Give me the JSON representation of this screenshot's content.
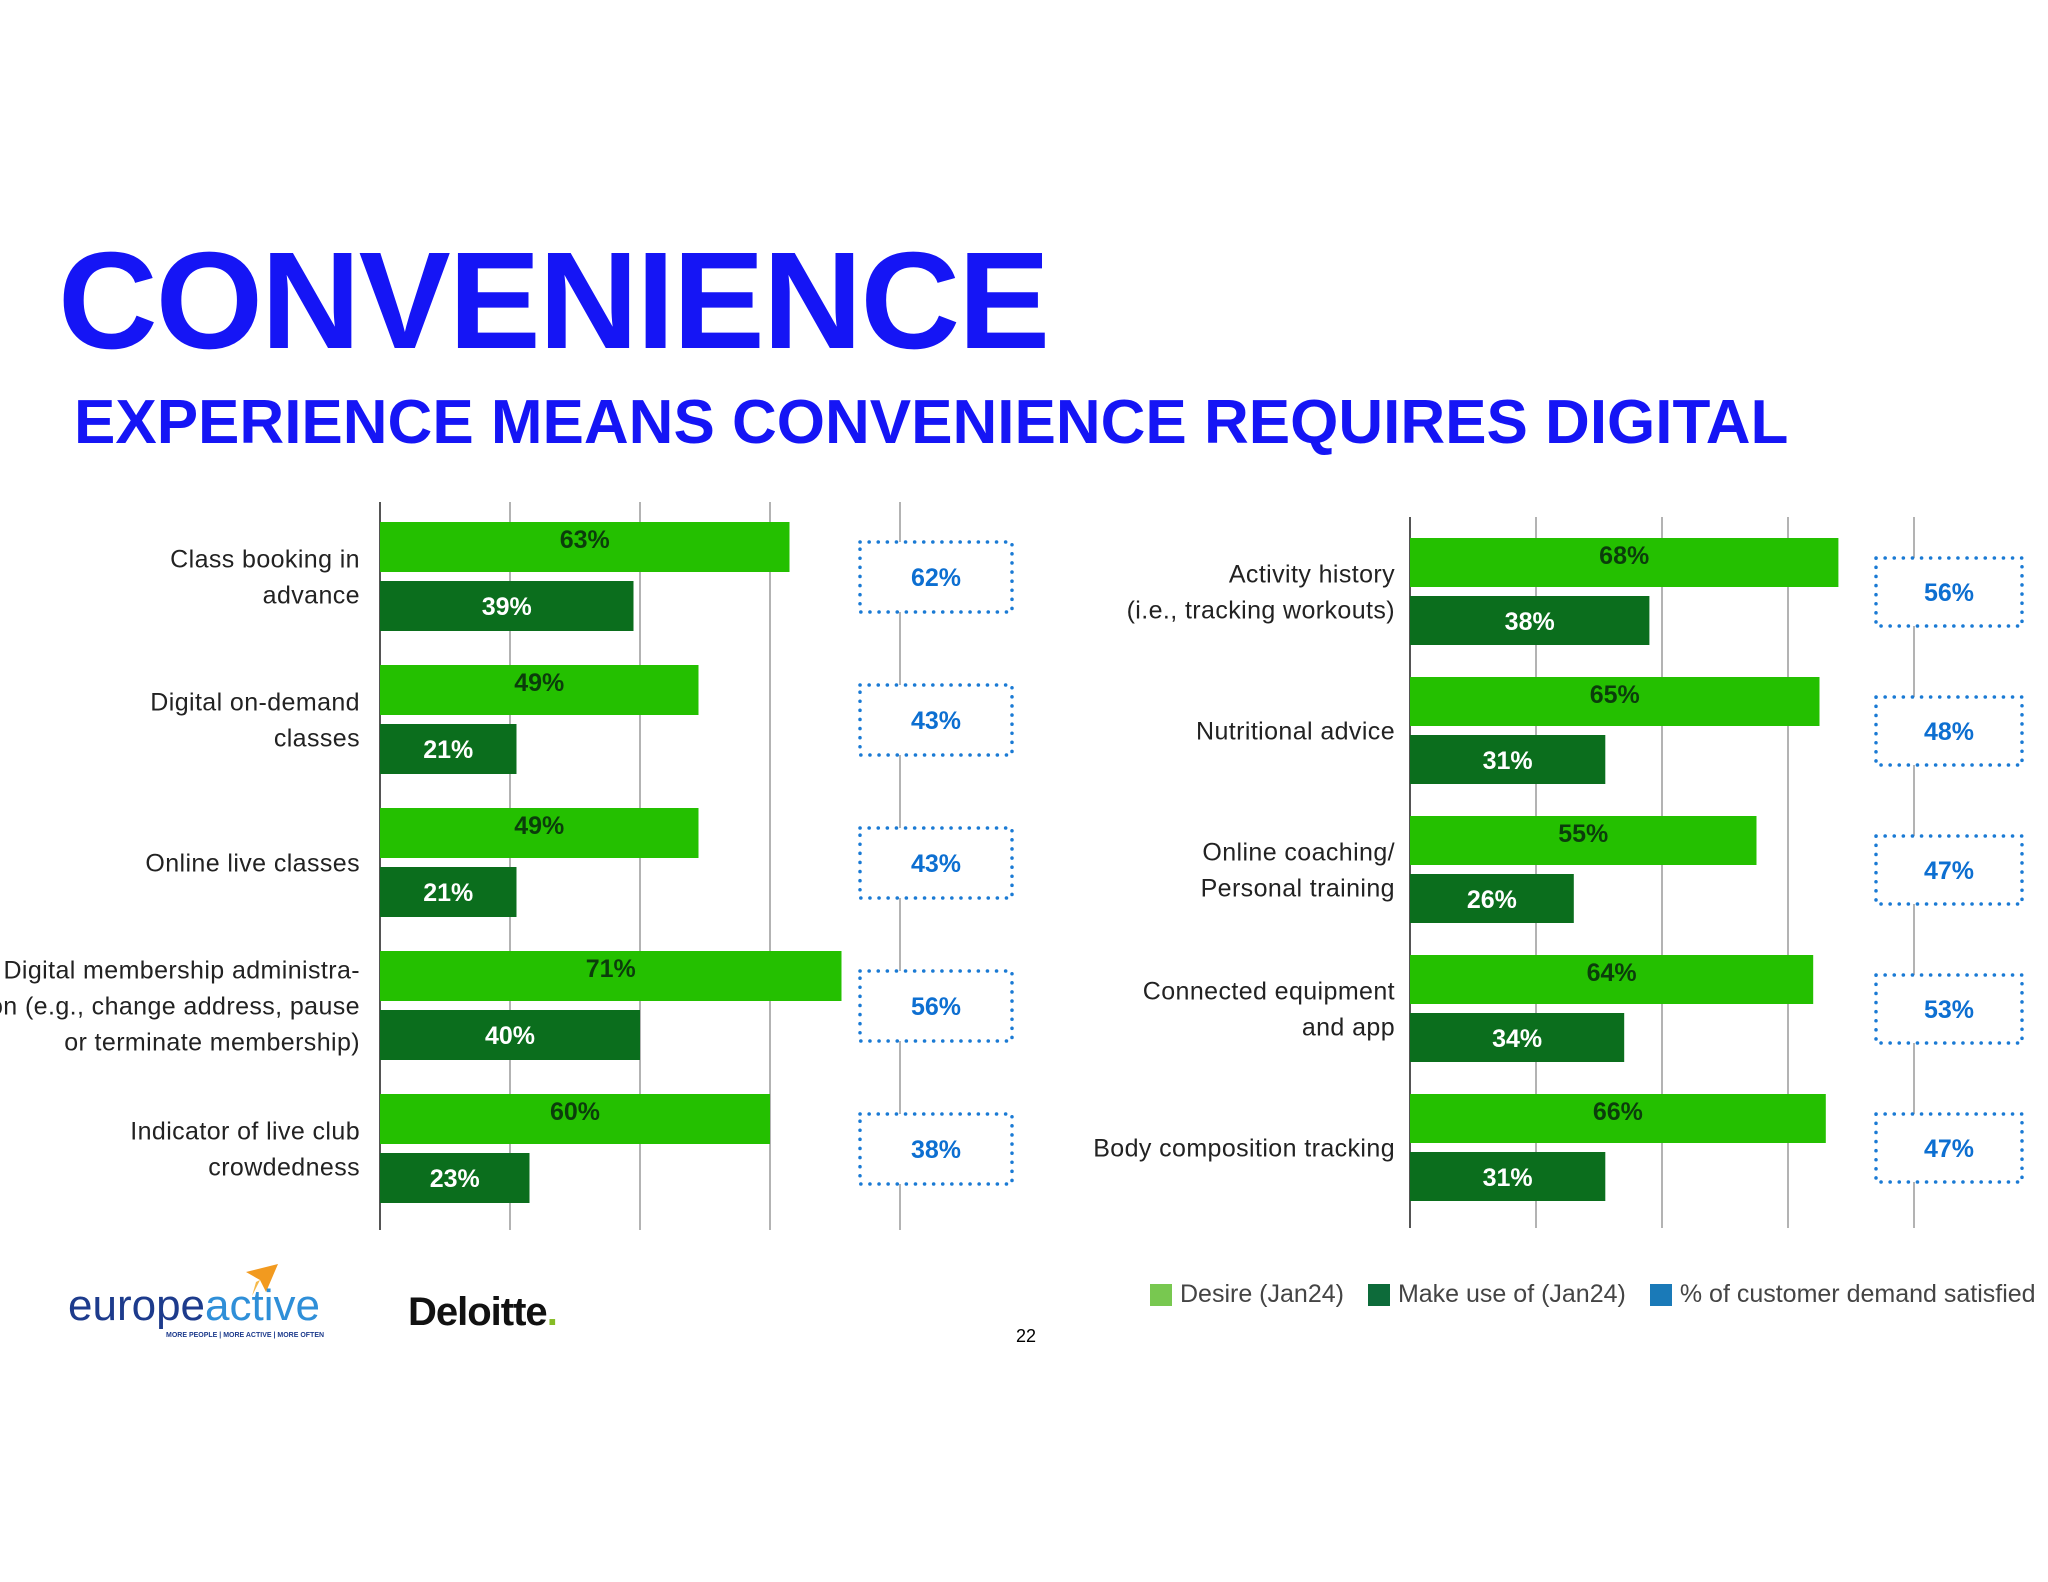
{
  "title": "CONVENIENCE",
  "subtitle": "EXPERIENCE MEANS CONVENIENCE REQUIRES DIGITAL",
  "colors": {
    "title": "#1515f5",
    "desire": "#24c000",
    "make_use": "#0b6e1d",
    "satisfied": "#1a7ad4",
    "desire_legend": "#78c850",
    "make_use_legend": "#0d6b3a",
    "satisfied_legend": "#1a7ab8"
  },
  "legend": {
    "desire": "Desire (Jan24)",
    "make_use": "Make use of (Jan24)",
    "satisfied": "% of customer demand satisfied"
  },
  "chart_data": [
    {
      "type": "bar",
      "orientation": "horizontal",
      "categories": [
        [
          "Class booking in",
          "advance"
        ],
        [
          "Digital on-demand",
          "classes"
        ],
        [
          "Online live classes"
        ],
        [
          "Digital membership administra-",
          "tion (e.g., change address, pause",
          "or terminate membership)"
        ],
        [
          "Indicator of live club",
          "crowdedness"
        ]
      ],
      "series": [
        {
          "name": "Desire (Jan24)",
          "values": [
            63,
            49,
            49,
            71,
            60
          ],
          "labels": [
            "63%",
            "49%",
            "49%",
            "71%",
            "60%"
          ]
        },
        {
          "name": "Make use of (Jan24)",
          "values": [
            39,
            21,
            21,
            40,
            23
          ],
          "labels": [
            "39%",
            "21%",
            "21%",
            "40%",
            "23%"
          ]
        },
        {
          "name": "% of customer demand satisfied",
          "values": [
            62,
            43,
            43,
            56,
            38
          ],
          "labels": [
            "62%",
            "43%",
            "43%",
            "56%",
            "38%"
          ]
        }
      ],
      "xlim": [
        0,
        80
      ],
      "grid": true
    },
    {
      "type": "bar",
      "orientation": "horizontal",
      "categories": [
        [
          "Activity history",
          "(i.e., tracking workouts)"
        ],
        [
          "Nutritional advice"
        ],
        [
          "Online coaching/",
          "Personal training"
        ],
        [
          "Connected equipment",
          "and app"
        ],
        [
          "Body composition tracking"
        ]
      ],
      "series": [
        {
          "name": "Desire (Jan24)",
          "values": [
            68,
            65,
            55,
            64,
            66
          ],
          "labels": [
            "68%",
            "65%",
            "55%",
            "64%",
            "66%"
          ]
        },
        {
          "name": "Make use of (Jan24)",
          "values": [
            38,
            31,
            26,
            34,
            31
          ],
          "labels": [
            "38%",
            "31%",
            "26%",
            "34%",
            "31%"
          ]
        },
        {
          "name": "% of customer demand satisfied",
          "values": [
            56,
            48,
            47,
            53,
            47
          ],
          "labels": [
            "56%",
            "48%",
            "47%",
            "53%",
            "47%"
          ]
        }
      ],
      "xlim": [
        0,
        80
      ],
      "grid": true
    }
  ],
  "logos": {
    "europeactive_part1": "europe",
    "europeactive_part2": "active",
    "europeactive_tagline": "MORE PEOPLE | MORE ACTIVE | MORE OFTEN",
    "deloitte": "Deloitte",
    "deloitte_dot": "."
  },
  "page_number": "22"
}
